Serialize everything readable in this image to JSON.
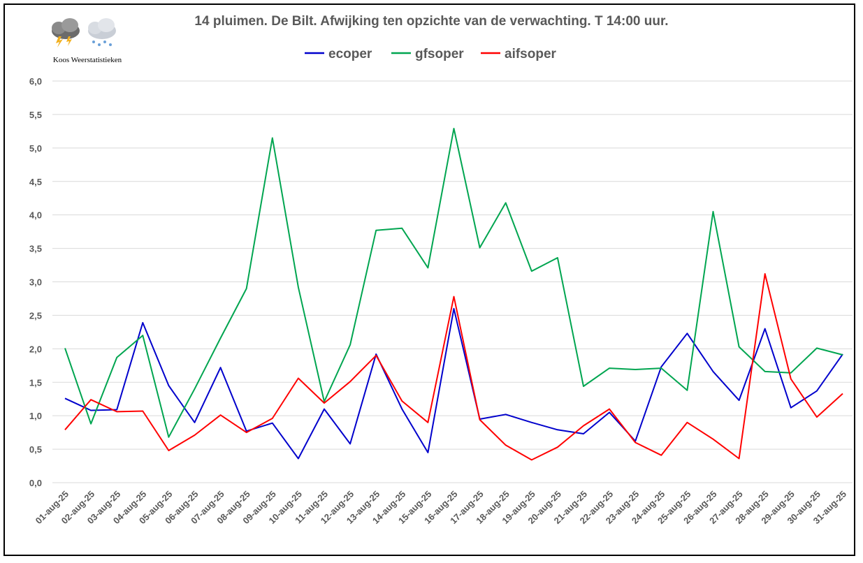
{
  "chart_data": {
    "type": "line",
    "title": "14 pluimen. De Bilt. Afwijking ten opzichte van de verwachting. T 14:00 uur.",
    "logo_caption": "Koos Weerstatistieken",
    "ylim": [
      0,
      6
    ],
    "y_ticks": [
      "0,0",
      "0,5",
      "1,0",
      "1,5",
      "2,0",
      "2,5",
      "3,0",
      "3,5",
      "4,0",
      "4,5",
      "5,0",
      "5,5",
      "6,0"
    ],
    "grid": true,
    "legend_position": "top",
    "categories": [
      "01-aug-25",
      "02-aug-25",
      "03-aug-25",
      "04-aug-25",
      "05-aug-25",
      "06-aug-25",
      "07-aug-25",
      "08-aug-25",
      "09-aug-25",
      "10-aug-25",
      "11-aug-25",
      "12-aug-25",
      "13-aug-25",
      "14-aug-25",
      "15-aug-25",
      "16-aug-25",
      "17-aug-25",
      "18-aug-25",
      "19-aug-25",
      "20-aug-25",
      "21-aug-25",
      "22-aug-25",
      "23-aug-25",
      "24-aug-25",
      "25-aug-25",
      "26-aug-25",
      "27-aug-25",
      "28-aug-25",
      "29-aug-25",
      "30-aug-25",
      "31-aug-25"
    ],
    "series": [
      {
        "name": "ecoper",
        "color": "#0000cc",
        "values": [
          1.26,
          1.08,
          1.09,
          2.39,
          1.45,
          0.9,
          1.72,
          0.77,
          0.89,
          0.36,
          1.1,
          0.58,
          1.92,
          1.1,
          0.45,
          2.6,
          0.95,
          1.02,
          0.9,
          0.79,
          0.73,
          1.05,
          0.62,
          1.73,
          2.23,
          1.66,
          1.23,
          2.3,
          1.12,
          1.37,
          1.92
        ]
      },
      {
        "name": "gfsoper",
        "color": "#00a550",
        "values": [
          2.01,
          0.88,
          1.87,
          2.2,
          0.68,
          1.4,
          2.16,
          2.9,
          5.15,
          2.92,
          1.21,
          2.06,
          3.77,
          3.8,
          3.21,
          5.29,
          3.51,
          4.18,
          3.16,
          3.36,
          1.44,
          1.71,
          1.69,
          1.71,
          1.38,
          4.05,
          2.03,
          1.66,
          1.64,
          2.01,
          1.91
        ]
      },
      {
        "name": "aifsoper",
        "color": "#ff0000",
        "values": [
          0.79,
          1.24,
          1.06,
          1.07,
          0.48,
          0.71,
          1.01,
          0.75,
          0.96,
          1.56,
          1.19,
          1.51,
          1.9,
          1.22,
          0.9,
          2.78,
          0.94,
          0.56,
          0.34,
          0.53,
          0.85,
          1.1,
          0.6,
          0.41,
          0.9,
          0.65,
          0.36,
          3.12,
          1.55,
          0.98,
          1.33
        ]
      }
    ]
  }
}
